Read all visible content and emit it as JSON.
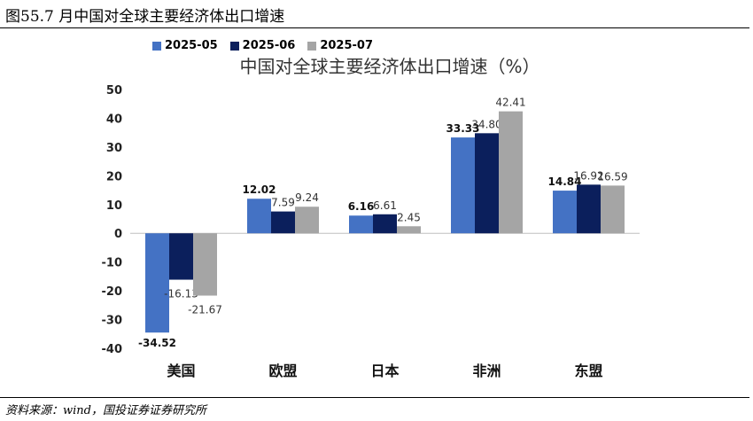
{
  "figure_title": "图55.7 月中国对全球主要经济体出口增速",
  "source": "资料来源：wind，国投证券证券研究所",
  "chart_data": {
    "type": "bar",
    "title": "中国对全球主要经济体出口增速（%）",
    "categories": [
      "美国",
      "欧盟",
      "日本",
      "非洲",
      "东盟"
    ],
    "series": [
      {
        "name": "2025-05",
        "color": "#4472C4",
        "values": [
          -34.52,
          12.02,
          6.16,
          33.33,
          14.84
        ],
        "labels": [
          "-34.52",
          "12.02",
          "6.16",
          "33.33",
          "14.84"
        ]
      },
      {
        "name": "2025-06",
        "color": "#0B1F5C",
        "values": [
          -16.13,
          7.59,
          6.61,
          34.8,
          16.92
        ],
        "labels": [
          "-16.13",
          "7.59",
          "6.61",
          "34.80",
          "16.92"
        ]
      },
      {
        "name": "2025-07",
        "color": "#A5A5A5",
        "values": [
          -21.67,
          9.24,
          2.45,
          42.41,
          16.59
        ],
        "labels": [
          "-21.67",
          "9.24",
          "2.45",
          "42.41",
          "16.59"
        ]
      }
    ],
    "yticks": [
      "50",
      "40",
      "30",
      "20",
      "10",
      "0",
      "-10",
      "-20",
      "-30",
      "-40"
    ],
    "ylim": [
      -40,
      50
    ],
    "grid": false,
    "legend": "top-left"
  }
}
